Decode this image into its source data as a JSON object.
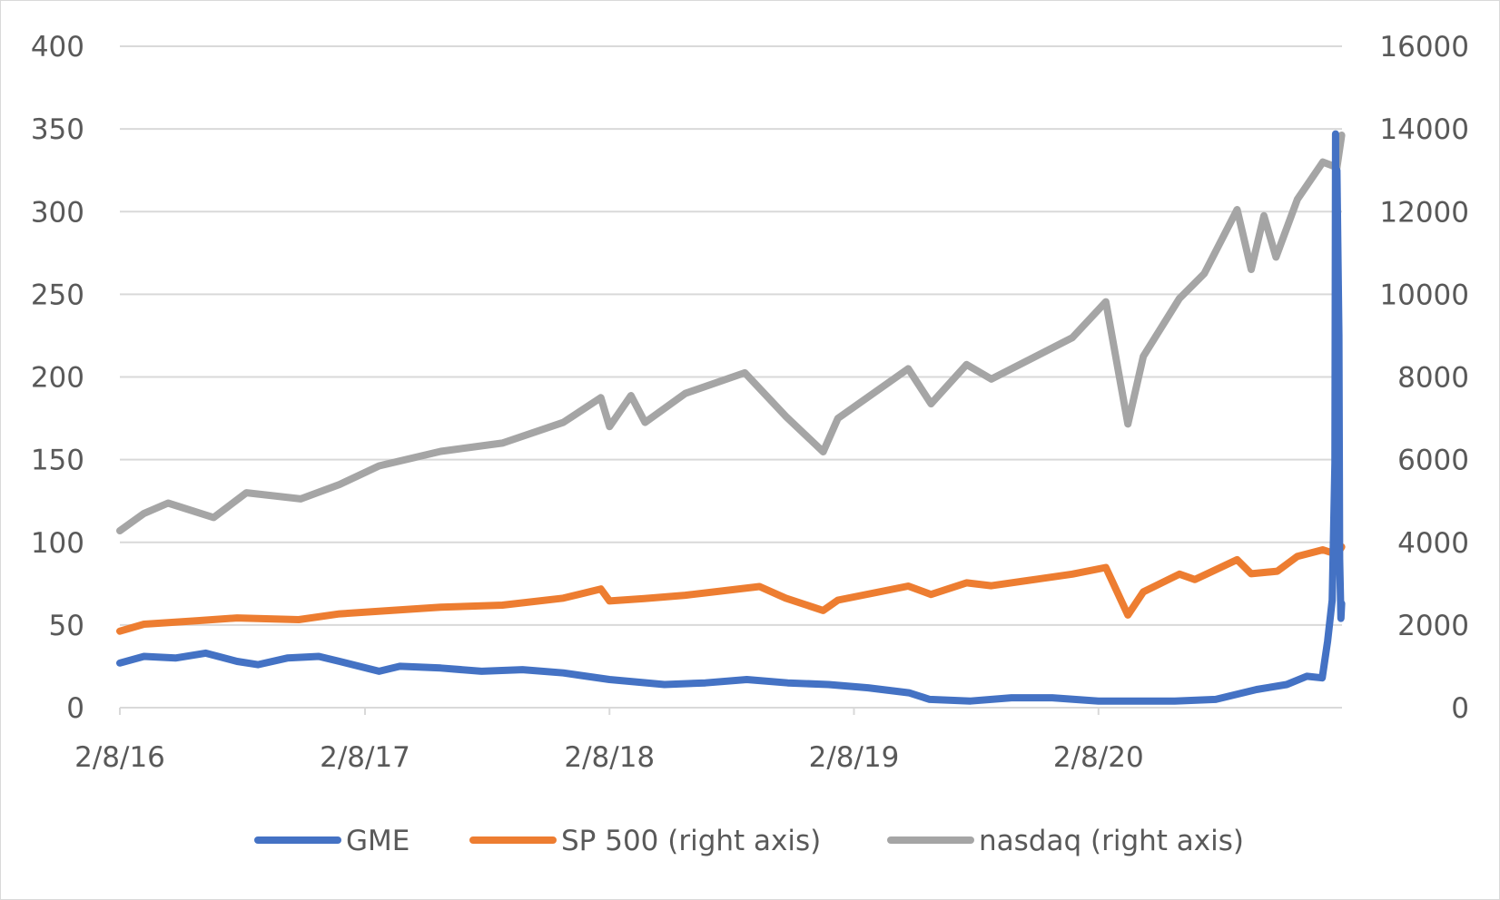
{
  "chart_data": {
    "type": "line",
    "title": "",
    "xlabel": "",
    "ylabel": "",
    "x_ticks": [
      "2/8/16",
      "2/8/17",
      "2/8/18",
      "2/8/19",
      "2/8/20"
    ],
    "xlim": [
      "2016-02-08",
      "2021-02-05"
    ],
    "y_left": {
      "ticks": [
        "0",
        "50",
        "100",
        "150",
        "200",
        "250",
        "300",
        "350",
        "400"
      ],
      "ylim": [
        0,
        400
      ]
    },
    "y_right": {
      "ticks": [
        "0",
        "2000",
        "4000",
        "6000",
        "8000",
        "10000",
        "12000",
        "14000",
        "16000"
      ],
      "ylim": [
        0,
        16000
      ]
    },
    "grid": true,
    "legend_position": "bottom",
    "series": [
      {
        "name": "GME",
        "axis": "left",
        "color": "#4472c4",
        "points": [
          [
            "2016-02-08",
            27
          ],
          [
            "2016-03-15",
            31
          ],
          [
            "2016-05-01",
            30
          ],
          [
            "2016-06-15",
            33
          ],
          [
            "2016-08-01",
            28
          ],
          [
            "2016-09-01",
            26
          ],
          [
            "2016-10-15",
            30
          ],
          [
            "2016-12-01",
            31
          ],
          [
            "2017-01-01",
            28
          ],
          [
            "2017-03-01",
            22
          ],
          [
            "2017-04-01",
            25
          ],
          [
            "2017-06-01",
            24
          ],
          [
            "2017-08-01",
            22
          ],
          [
            "2017-10-01",
            23
          ],
          [
            "2017-12-01",
            21
          ],
          [
            "2018-02-08",
            17
          ],
          [
            "2018-05-01",
            14
          ],
          [
            "2018-07-01",
            15
          ],
          [
            "2018-09-01",
            17
          ],
          [
            "2018-11-01",
            15
          ],
          [
            "2019-01-01",
            14
          ],
          [
            "2019-03-01",
            12
          ],
          [
            "2019-05-01",
            9
          ],
          [
            "2019-06-01",
            5
          ],
          [
            "2019-08-01",
            4
          ],
          [
            "2019-10-01",
            6
          ],
          [
            "2019-12-01",
            6
          ],
          [
            "2020-02-08",
            4
          ],
          [
            "2020-04-01",
            4
          ],
          [
            "2020-06-01",
            4
          ],
          [
            "2020-08-01",
            5
          ],
          [
            "2020-10-01",
            11
          ],
          [
            "2020-11-15",
            14
          ],
          [
            "2020-12-15",
            19
          ],
          [
            "2021-01-07",
            18
          ],
          [
            "2021-01-15",
            40
          ],
          [
            "2021-01-22",
            65
          ],
          [
            "2021-01-26",
            148
          ],
          [
            "2021-01-27",
            347
          ],
          [
            "2021-01-28",
            193
          ],
          [
            "2021-01-29",
            325
          ],
          [
            "2021-02-01",
            225
          ],
          [
            "2021-02-02",
            90
          ],
          [
            "2021-02-04",
            54
          ],
          [
            "2021-02-05",
            63
          ]
        ]
      },
      {
        "name": "SP 500 (right axis)",
        "axis": "right",
        "color": "#ed7d31",
        "points": [
          [
            "2016-02-08",
            1850
          ],
          [
            "2016-03-15",
            2020
          ],
          [
            "2016-06-01",
            2100
          ],
          [
            "2016-08-01",
            2170
          ],
          [
            "2016-11-01",
            2130
          ],
          [
            "2017-01-01",
            2270
          ],
          [
            "2017-06-01",
            2430
          ],
          [
            "2017-09-01",
            2480
          ],
          [
            "2017-12-01",
            2650
          ],
          [
            "2018-01-26",
            2870
          ],
          [
            "2018-02-08",
            2580
          ],
          [
            "2018-04-01",
            2640
          ],
          [
            "2018-06-01",
            2720
          ],
          [
            "2018-09-20",
            2930
          ],
          [
            "2018-10-29",
            2650
          ],
          [
            "2018-12-24",
            2350
          ],
          [
            "2019-01-15",
            2600
          ],
          [
            "2019-04-30",
            2940
          ],
          [
            "2019-06-03",
            2740
          ],
          [
            "2019-07-26",
            3020
          ],
          [
            "2019-09-01",
            2950
          ],
          [
            "2019-12-31",
            3230
          ],
          [
            "2020-02-19",
            3390
          ],
          [
            "2020-03-23",
            2240
          ],
          [
            "2020-04-15",
            2800
          ],
          [
            "2020-06-08",
            3230
          ],
          [
            "2020-07-01",
            3100
          ],
          [
            "2020-09-02",
            3580
          ],
          [
            "2020-09-23",
            3240
          ],
          [
            "2020-11-01",
            3300
          ],
          [
            "2020-12-01",
            3660
          ],
          [
            "2021-01-08",
            3820
          ],
          [
            "2021-01-29",
            3710
          ],
          [
            "2021-02-05",
            3890
          ]
        ]
      },
      {
        "name": "nasdaq (right axis)",
        "axis": "right",
        "color": "#a5a5a5",
        "points": [
          [
            "2016-02-08",
            4280
          ],
          [
            "2016-03-15",
            4700
          ],
          [
            "2016-04-20",
            4950
          ],
          [
            "2016-06-27",
            4600
          ],
          [
            "2016-08-15",
            5200
          ],
          [
            "2016-11-04",
            5050
          ],
          [
            "2017-01-01",
            5400
          ],
          [
            "2017-03-01",
            5850
          ],
          [
            "2017-06-01",
            6200
          ],
          [
            "2017-09-01",
            6400
          ],
          [
            "2017-12-01",
            6900
          ],
          [
            "2018-01-26",
            7500
          ],
          [
            "2018-02-08",
            6800
          ],
          [
            "2018-03-12",
            7550
          ],
          [
            "2018-04-02",
            6900
          ],
          [
            "2018-06-01",
            7600
          ],
          [
            "2018-08-29",
            8100
          ],
          [
            "2018-10-29",
            7050
          ],
          [
            "2018-12-24",
            6190
          ],
          [
            "2019-01-15",
            7000
          ],
          [
            "2019-04-30",
            8200
          ],
          [
            "2019-06-03",
            7350
          ],
          [
            "2019-07-26",
            8300
          ],
          [
            "2019-09-01",
            7950
          ],
          [
            "2019-12-31",
            8950
          ],
          [
            "2020-02-19",
            9820
          ],
          [
            "2020-03-23",
            6860
          ],
          [
            "2020-04-15",
            8500
          ],
          [
            "2020-06-08",
            9900
          ],
          [
            "2020-07-15",
            10500
          ],
          [
            "2020-09-02",
            12050
          ],
          [
            "2020-09-23",
            10600
          ],
          [
            "2020-10-12",
            11900
          ],
          [
            "2020-10-30",
            10900
          ],
          [
            "2020-12-01",
            12300
          ],
          [
            "2021-01-08",
            13200
          ],
          [
            "2021-01-29",
            13070
          ],
          [
            "2021-02-05",
            13850
          ]
        ]
      }
    ]
  }
}
